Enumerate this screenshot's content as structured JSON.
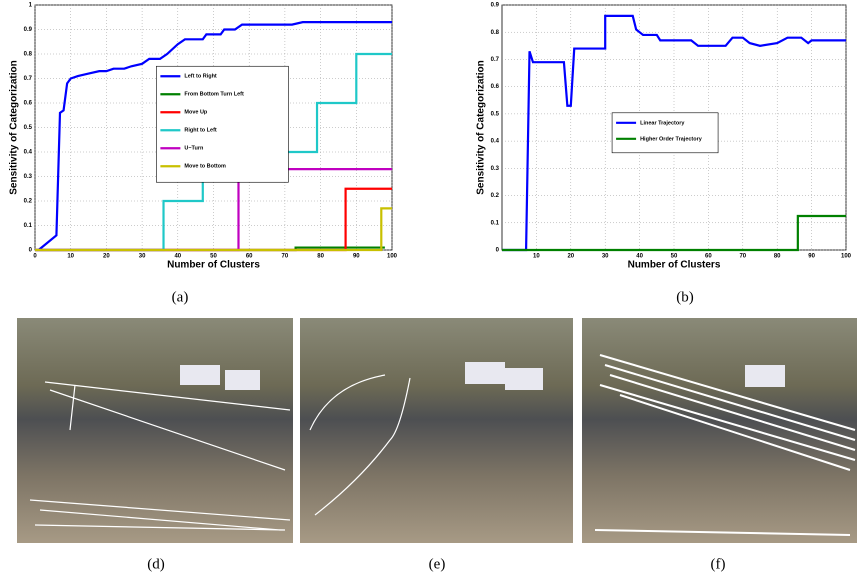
{
  "chart_data": [
    {
      "type": "line",
      "xlabel": "Number of Clusters",
      "ylabel": "Sensitivity of Categorization",
      "xlim": [
        0,
        100
      ],
      "ylim": [
        0,
        1
      ],
      "xticks": [
        0,
        10,
        20,
        30,
        40,
        50,
        60,
        70,
        80,
        90,
        100
      ],
      "yticks": [
        0,
        {
          "value": 0.1,
          "label": "0.1"
        },
        {
          "value": 0.2,
          "label": "0.2"
        },
        {
          "value": 0.3,
          "label": "0.3"
        },
        {
          "value": 0.4,
          "label": "0.4"
        },
        {
          "value": 0.5,
          "label": "0.5"
        },
        {
          "value": 0.6,
          "label": "0.6"
        },
        {
          "value": 0.7,
          "label": "0.7"
        },
        {
          "value": 0.8,
          "label": "0.8"
        },
        {
          "value": 0.9,
          "label": "0.9"
        },
        1
      ],
      "grid": true,
      "legend": "center",
      "series": [
        {
          "name": "Left to Right",
          "color": "#0000ff",
          "x": [
            1,
            6,
            7,
            8,
            9,
            10,
            12,
            15,
            18,
            20,
            22,
            25,
            27,
            30,
            32,
            35,
            37,
            40,
            42,
            47,
            48,
            52,
            53,
            56,
            58,
            72,
            75,
            100
          ],
          "values": [
            0,
            0.06,
            0.56,
            0.57,
            0.68,
            0.7,
            0.71,
            0.72,
            0.73,
            0.73,
            0.74,
            0.74,
            0.75,
            0.76,
            0.78,
            0.78,
            0.8,
            0.84,
            0.86,
            0.86,
            0.88,
            0.88,
            0.9,
            0.9,
            0.92,
            0.92,
            0.93,
            0.93
          ]
        },
        {
          "name": "From Bottom Turn Left",
          "color": "#008000",
          "x": [
            0,
            73,
            73,
            98
          ],
          "values": [
            0,
            0,
            0.01,
            0.01
          ]
        },
        {
          "name": "Move Up",
          "color": "#ff0000",
          "x": [
            0,
            87,
            87,
            100
          ],
          "values": [
            0,
            0,
            0.25,
            0.25
          ]
        },
        {
          "name": "Right to Left",
          "color": "#1fc8c8",
          "x": [
            0,
            36,
            36,
            47,
            47,
            79,
            79,
            90,
            90,
            100
          ],
          "values": [
            0,
            0,
            0.2,
            0.2,
            0.4,
            0.4,
            0.6,
            0.6,
            0.8,
            0.8
          ]
        },
        {
          "name": "U−Turn",
          "color": "#c000c0",
          "x": [
            0,
            57,
            57,
            100
          ],
          "values": [
            0,
            0,
            0.33,
            0.33
          ]
        },
        {
          "name": "Move to Bottom",
          "color": "#c8c000",
          "x": [
            0,
            97,
            97,
            100
          ],
          "values": [
            0,
            0,
            0.17,
            0.17
          ]
        }
      ]
    },
    {
      "type": "line",
      "xlabel": "Number of Clusters",
      "ylabel": "Sensitivity of Categorization",
      "xlim": [
        0,
        100
      ],
      "ylim": [
        0,
        0.9
      ],
      "xticks": [
        10,
        20,
        30,
        40,
        50,
        60,
        70,
        80,
        90,
        100
      ],
      "yticks": [
        0,
        {
          "value": 0.1,
          "label": "0.1"
        },
        {
          "value": 0.2,
          "label": "0.2"
        },
        {
          "value": 0.3,
          "label": "0.3"
        },
        {
          "value": 0.4,
          "label": "0.4"
        },
        {
          "value": 0.5,
          "label": "0.5"
        },
        {
          "value": 0.6,
          "label": "0.6"
        },
        {
          "value": 0.7,
          "label": "0.7"
        },
        {
          "value": 0.8,
          "label": "0.8"
        },
        {
          "value": 0.9,
          "label": "0.9"
        }
      ],
      "grid": true,
      "legend": "center left",
      "series": [
        {
          "name": "Linear Trajectory",
          "color": "#0000ff",
          "x": [
            0,
            7,
            8,
            9,
            18,
            19,
            20,
            21,
            30,
            30,
            38,
            39,
            41,
            45,
            46,
            55,
            57,
            65,
            67,
            70,
            72,
            75,
            80,
            83,
            87,
            89,
            90,
            100
          ],
          "values": [
            0,
            0,
            0.73,
            0.69,
            0.69,
            0.53,
            0.53,
            0.74,
            0.74,
            0.86,
            0.86,
            0.81,
            0.79,
            0.79,
            0.77,
            0.77,
            0.75,
            0.75,
            0.78,
            0.78,
            0.76,
            0.75,
            0.76,
            0.78,
            0.78,
            0.76,
            0.77,
            0.77
          ]
        },
        {
          "name": "Higher Order Trajectory",
          "color": "#008000",
          "x": [
            0,
            86,
            86,
            100
          ],
          "values": [
            0,
            0,
            0.125,
            0.125
          ]
        }
      ]
    }
  ],
  "captions": [
    "(a)",
    "(b)",
    "(d)",
    "(e)",
    "(f)"
  ]
}
